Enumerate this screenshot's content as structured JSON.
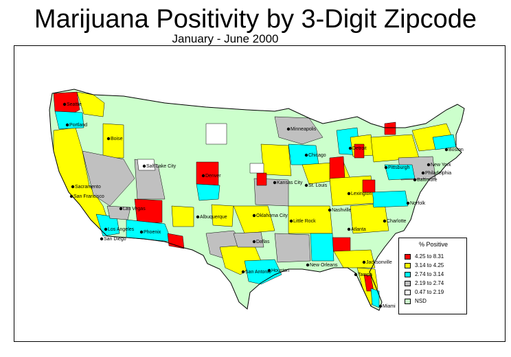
{
  "title": "Marijuana Positivity by 3-Digit Zipcode",
  "subtitle": "January - June 2000",
  "colors": {
    "red": "#ff0000",
    "yellow": "#ffff00",
    "cyan": "#00ffff",
    "gray": "#c0c0c0",
    "white": "#ffffff",
    "nsd": "#ccffcc",
    "border": "#000000"
  },
  "legend": {
    "title": "% Positive",
    "items": [
      {
        "label": "4.25 to 8.31",
        "color": "#ff0000"
      },
      {
        "label": "3.14 to 4.25",
        "color": "#ffff00"
      },
      {
        "label": "2.74 to 3.14",
        "color": "#00ffff"
      },
      {
        "label": "2.19 to 2.74",
        "color": "#c0c0c0"
      },
      {
        "label": "0.47 to 2.19",
        "color": "#ffffff"
      },
      {
        "label": "NSD",
        "color": "#ccffcc"
      }
    ]
  },
  "cities": [
    "Seattle",
    "Portland",
    "Boise",
    "Salt Lake City",
    "Sacramento",
    "San Francisco",
    "Las Vegas",
    "Los Angeles",
    "San Diego",
    "Phoenix",
    "Albuquerque",
    "Denver",
    "Minneapolis",
    "Chicago",
    "Detroit",
    "Kansas City",
    "St. Louis",
    "Oklahoma City",
    "Little Rock",
    "Dallas",
    "Houston",
    "San Antonio",
    "New Orleans",
    "Nashville",
    "Atlanta",
    "Lexington",
    "Charlotte",
    "Norfolk",
    "Pittsburgh",
    "Baltimore",
    "Philadelphia",
    "New York",
    "Boston",
    "Jacksonville",
    "Tampa",
    "Miami"
  ]
}
